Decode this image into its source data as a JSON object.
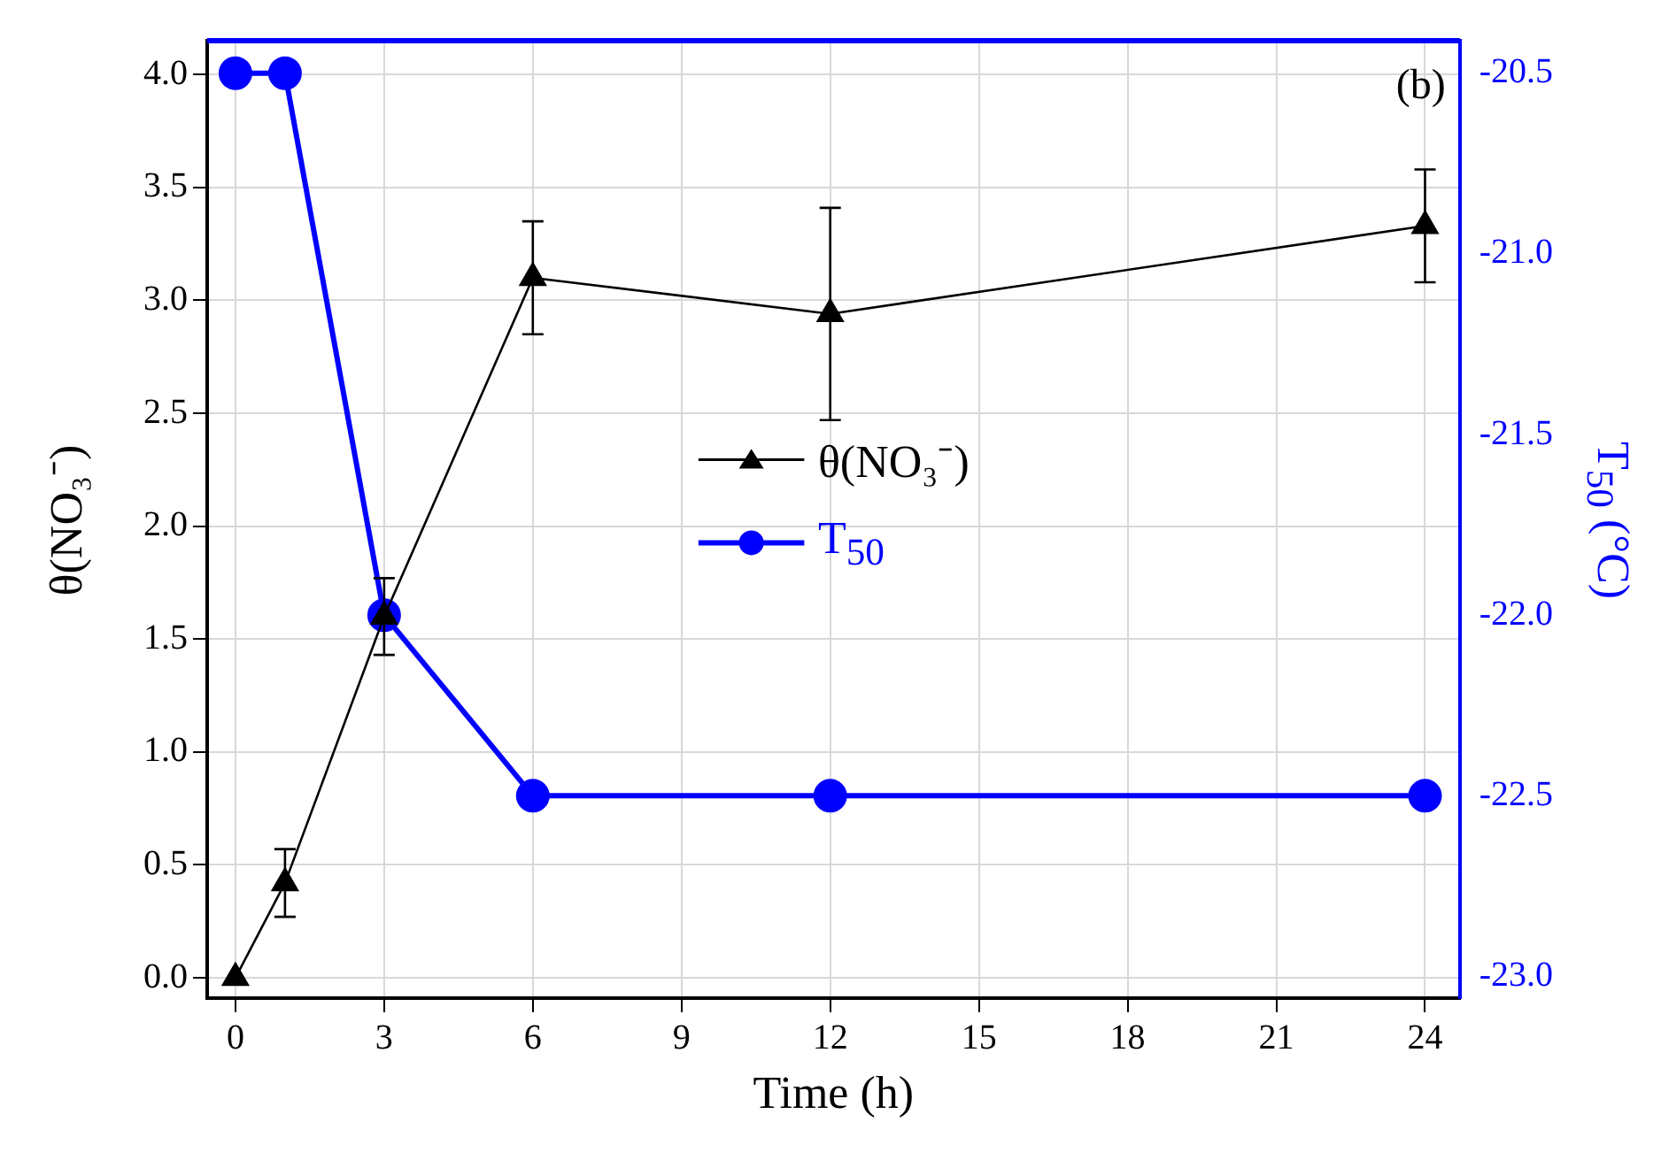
{
  "chart_data": {
    "type": "line",
    "x": [
      0,
      1,
      3,
      6,
      12,
      24
    ],
    "series": [
      {
        "name": "θ(NO₃⁻)",
        "color": "#000000",
        "marker": "triangle",
        "values": [
          0,
          0.42,
          1.6,
          3.1,
          2.94,
          3.33
        ],
        "errors": [
          null,
          0.15,
          0.17,
          0.25,
          0.47,
          0.25
        ]
      },
      {
        "name": "T$_{50}$",
        "color": "#0000ff",
        "marker": "circle",
        "axis": "y2",
        "values": [
          -20.5,
          -20.5,
          -22.0,
          -22.5,
          -22.5,
          -22.5
        ]
      }
    ],
    "xlabel": "Time (h)",
    "ylabel": "θ(NO₃⁻)",
    "y2label": "T$_{50}$ (°C)",
    "xlim": [
      -0.57,
      24.7
    ],
    "xticks": [
      0,
      3,
      6,
      9,
      12,
      15,
      18,
      21,
      24
    ],
    "ylim": [
      -0.09,
      4.15
    ],
    "yticks": [
      {
        "value": 0,
        "label": "0.0"
      },
      0.5,
      {
        "value": 1,
        "label": "1.0"
      },
      1.5,
      {
        "value": 2,
        "label": "2.0"
      },
      2.5,
      {
        "value": 3,
        "label": "3.0"
      },
      3.5,
      {
        "value": 4,
        "label": "4.0"
      }
    ],
    "y2lim": [
      -23.06,
      -20.41
    ],
    "y2ticks": [
      {
        "value": -23,
        "label": "-23.0"
      },
      -22.5,
      {
        "value": -22,
        "label": "-22.0"
      },
      -21.5,
      {
        "value": -21,
        "label": "-21.0"
      },
      -20.5
    ],
    "annotations": [
      "(b)"
    ],
    "grid": true,
    "legend": "center"
  }
}
